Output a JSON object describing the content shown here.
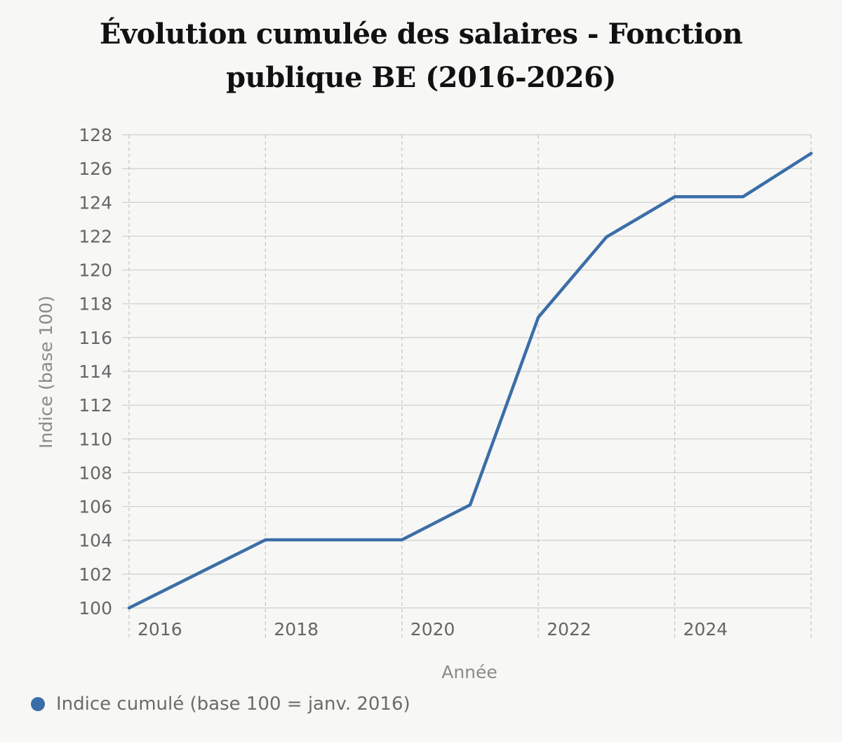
{
  "chart_data": {
    "type": "line",
    "title": "Évolution cumulée des salaires - Fonction publique BE (2016-2026)",
    "xlabel": "Année",
    "ylabel": "Indice (base 100)",
    "xlim": [
      2016,
      2026
    ],
    "ylim": [
      100,
      128
    ],
    "x_ticks": [
      2016,
      2018,
      2020,
      2022,
      2024
    ],
    "y_ticks": [
      100,
      102,
      104,
      106,
      108,
      110,
      112,
      114,
      116,
      118,
      120,
      122,
      124,
      126,
      128
    ],
    "grid": true,
    "legend_position": "bottom-left",
    "series": [
      {
        "name": "Indice cumulé (base 100 = janv. 2016)",
        "color": "#3b6ea8",
        "x": [
          2016,
          2018,
          2020,
          2021,
          2022,
          2023,
          2024,
          2025,
          2026
        ],
        "y": [
          100,
          104.03,
          104.03,
          106.1,
          117.2,
          121.95,
          124.33,
          124.33,
          126.9
        ]
      }
    ]
  }
}
